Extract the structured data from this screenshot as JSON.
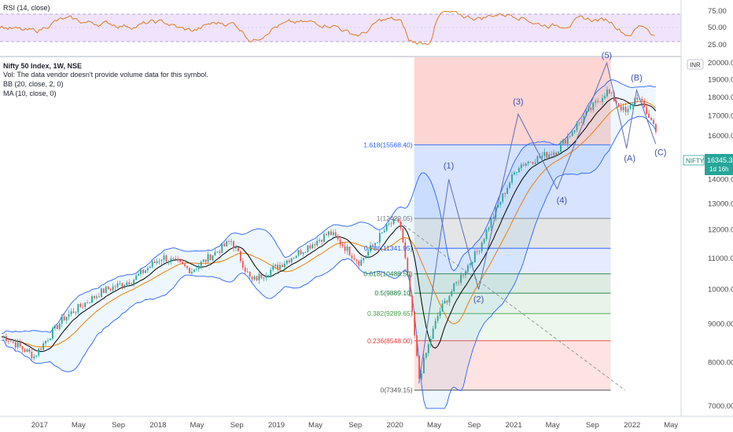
{
  "rsi_panel": {
    "label": "RSI (14, close)",
    "ticks": [
      "75.00",
      "50.00",
      "25.00"
    ],
    "line_color": "#e07b20",
    "band_color": "#e7d9f7"
  },
  "legend": {
    "title": "Nifty 50 Index, 1W, NSE",
    "vol": "Vol: The data vendor doesn't provide volume data for this symbol.",
    "bb": "BB (20, close, 2, 0)",
    "ma": "MA (10, close, 0)"
  },
  "price_axis": {
    "ticks": [
      "20000.00",
      "19000.00",
      "18000.00",
      "17000.00",
      "16000.00",
      "15000.00",
      "14000.00",
      "13000.00",
      "12000.00",
      "11000.00",
      "10000.00",
      "9000.00",
      "8000.00",
      "7000.00"
    ],
    "currency_badge": "INR"
  },
  "price_label": {
    "symbol": "NIFTY",
    "price": "16345.35",
    "countdown": "1d 16h",
    "color": "#26a69a"
  },
  "time_axis": {
    "labels": [
      "2017",
      "May",
      "Sep",
      "2018",
      "May",
      "Sep",
      "2019",
      "May",
      "Sep",
      "2020",
      "May",
      "Sep",
      "2021",
      "May",
      "Sep",
      "2022",
      "May"
    ]
  },
  "fib_levels": [
    {
      "label": "1.618(15568.40)",
      "value": 15568.4,
      "color": "#2962ff"
    },
    {
      "label": "1(12429.05)",
      "value": 12429.05,
      "color": "#787b86"
    },
    {
      "label": "0.786(11341.95)",
      "value": 11341.95,
      "color": "#2962ff"
    },
    {
      "label": "0.618(10488.50)",
      "value": 10488.5,
      "color": "#1b7a3c"
    },
    {
      "label": "0.5(9889.10)",
      "value": 9889.1,
      "color": "#1b7a3c"
    },
    {
      "label": "0.382(9289.65)",
      "value": 9289.65,
      "color": "#43a047"
    },
    {
      "label": "0.236(8548.00)",
      "value": 8548.0,
      "color": "#e53935"
    },
    {
      "label": "0(7349.15)",
      "value": 7349.15,
      "color": "#555555"
    }
  ],
  "wave_labels": [
    "(1)",
    "(2)",
    "(3)",
    "(4)",
    "(5)",
    "(A)",
    "(B)",
    "(C)"
  ],
  "colors": {
    "up_candle": "#26a69a",
    "down_candle": "#ef5350",
    "bb_band": "#2962ff",
    "ma_black": "#000000",
    "ma_orange": "#f57c00",
    "wave_line": "#5b6fb5"
  },
  "chart_data": {
    "type": "candlestick",
    "symbol": "Nifty 50 Index",
    "timeframe": "1W",
    "ylim": [
      6900,
      20200
    ],
    "x_range": [
      "2016-09",
      "2022-06"
    ],
    "close_path": [
      {
        "date": "2016-09",
        "close": 8650
      },
      {
        "date": "2016-12",
        "close": 8150
      },
      {
        "date": "2017-03",
        "close": 9150
      },
      {
        "date": "2017-07",
        "close": 9950
      },
      {
        "date": "2017-10",
        "close": 10300
      },
      {
        "date": "2018-01",
        "close": 11050
      },
      {
        "date": "2018-04",
        "close": 10600
      },
      {
        "date": "2018-08",
        "close": 11600
      },
      {
        "date": "2018-10",
        "close": 10250
      },
      {
        "date": "2019-01",
        "close": 10800
      },
      {
        "date": "2019-06",
        "close": 11900
      },
      {
        "date": "2019-09",
        "close": 10850
      },
      {
        "date": "2019-12",
        "close": 12200
      },
      {
        "date": "2020-01",
        "close": 12350
      },
      {
        "date": "2020-03",
        "close": 7600
      },
      {
        "date": "2020-05",
        "close": 9300
      },
      {
        "date": "2020-09",
        "close": 11300
      },
      {
        "date": "2021-01",
        "close": 14600
      },
      {
        "date": "2021-05",
        "close": 15300
      },
      {
        "date": "2021-10",
        "close": 18350
      },
      {
        "date": "2021-12",
        "close": 17100
      },
      {
        "date": "2022-01",
        "close": 18100
      },
      {
        "date": "2022-03",
        "close": 16345
      }
    ],
    "wave_points": [
      {
        "label": "start",
        "date": "2020-03",
        "value": 7500
      },
      {
        "label": "(1)",
        "date": "2020-06",
        "value": 14000
      },
      {
        "label": "(2)",
        "date": "2020-09",
        "value": 10000
      },
      {
        "label": "(3)",
        "date": "2021-01",
        "value": 17100
      },
      {
        "label": "(4)",
        "date": "2021-05",
        "value": 13600
      },
      {
        "label": "(5)",
        "date": "2021-10",
        "value": 20000
      },
      {
        "label": "(A)",
        "date": "2021-12",
        "value": 15400
      },
      {
        "label": "(B)",
        "date": "2022-01",
        "value": 18400
      },
      {
        "label": "(C)",
        "date": "2022-03",
        "value": 15600
      }
    ]
  }
}
